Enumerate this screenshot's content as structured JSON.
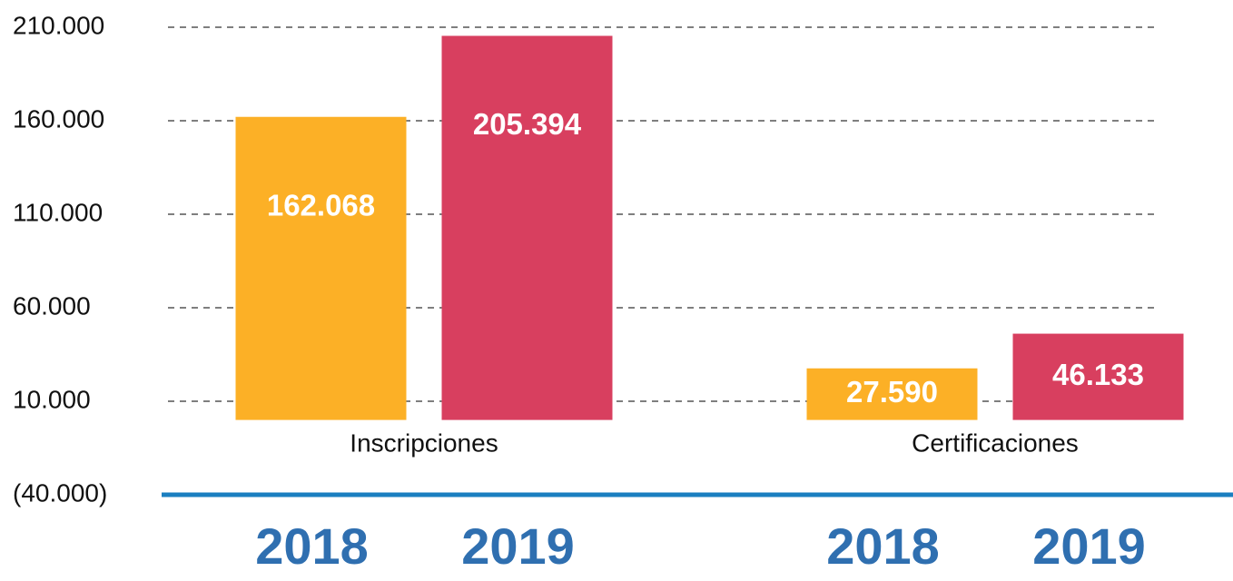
{
  "chart_data": {
    "type": "bar",
    "categories": [
      "Inscripciones",
      "Certificaciones"
    ],
    "series": [
      {
        "name": "2018",
        "color": "#fcb026",
        "values": [
          162068,
          27590
        ],
        "value_labels": [
          "162.068",
          "27.590"
        ]
      },
      {
        "name": "2019",
        "color": "#d83f5f",
        "values": [
          205394,
          46133
        ],
        "value_labels": [
          "205.394",
          "46.133"
        ]
      }
    ],
    "ylim": [
      -40000,
      210000
    ],
    "yticks": [
      {
        "value": -40000,
        "label": "(40.000)"
      },
      {
        "value": 10000,
        "label": "10.000"
      },
      {
        "value": 60000,
        "label": "60.000"
      },
      {
        "value": 110000,
        "label": "110.000"
      },
      {
        "value": 160000,
        "label": "160.000"
      },
      {
        "value": 210000,
        "label": "210.000"
      }
    ],
    "grid": true,
    "axis_color": "#1a7fc0"
  }
}
